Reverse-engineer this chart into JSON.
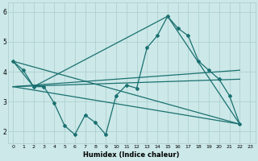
{
  "xlabel": "Humidex (Indice chaleur)",
  "bg_color": "#cce8e8",
  "line_color": "#1a7070",
  "grid_color": "#aacccc",
  "xlim": [
    -0.5,
    23.5
  ],
  "ylim": [
    1.6,
    6.3
  ],
  "yticks": [
    2,
    3,
    4,
    5,
    6
  ],
  "xticks": [
    0,
    1,
    2,
    3,
    4,
    5,
    6,
    7,
    8,
    9,
    10,
    11,
    12,
    13,
    14,
    15,
    16,
    17,
    18,
    19,
    20,
    21,
    22,
    23
  ],
  "series1_x": [
    0,
    1,
    2,
    3,
    4,
    5,
    6,
    7,
    8,
    9,
    10,
    11,
    12,
    13,
    14,
    15,
    16,
    17,
    18,
    19,
    20,
    21,
    22
  ],
  "series1_y": [
    4.35,
    4.05,
    3.5,
    3.5,
    2.95,
    2.2,
    1.9,
    2.55,
    2.3,
    1.9,
    3.2,
    3.55,
    3.45,
    4.8,
    5.2,
    5.85,
    5.45,
    5.2,
    4.35,
    4.05,
    3.75,
    3.2,
    2.25
  ],
  "line1_x": [
    0,
    22
  ],
  "line1_y": [
    3.5,
    4.05
  ],
  "line2_x": [
    0,
    22
  ],
  "line2_y": [
    3.5,
    3.75
  ],
  "line3_x": [
    0,
    22
  ],
  "line3_y": [
    3.5,
    2.25
  ],
  "tri_x": [
    0,
    2,
    15,
    22,
    0
  ],
  "tri_y": [
    4.35,
    3.5,
    5.85,
    2.25,
    4.35
  ]
}
